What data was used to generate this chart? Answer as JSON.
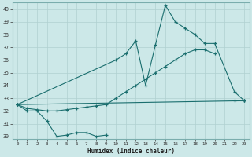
{
  "xlabel": "Humidex (Indice chaleur)",
  "bg_color": "#cce8e8",
  "grid_color": "#b0d0d0",
  "line_color": "#1a6e6e",
  "xlim": [
    -0.5,
    23.5
  ],
  "ylim": [
    29.8,
    40.5
  ],
  "xticks": [
    0,
    1,
    2,
    3,
    4,
    5,
    6,
    7,
    8,
    9,
    10,
    11,
    12,
    13,
    14,
    15,
    16,
    17,
    18,
    19,
    20,
    21,
    22,
    23
  ],
  "yticks": [
    30,
    31,
    32,
    33,
    34,
    35,
    36,
    37,
    38,
    39,
    40
  ],
  "series": [
    {
      "x": [
        0,
        1,
        2,
        3,
        4,
        5,
        6,
        7,
        8,
        9
      ],
      "y": [
        32.5,
        32.0,
        32.0,
        31.2,
        30.0,
        30.1,
        30.3,
        30.3,
        30.0,
        30.1
      ]
    },
    {
      "x": [
        0,
        1,
        2,
        3,
        4,
        5,
        6,
        7,
        8,
        9,
        10,
        11,
        12,
        13,
        14,
        15,
        16,
        17,
        18,
        19,
        20,
        21,
        22,
        23
      ],
      "y": [
        32.5,
        32.2,
        32.1,
        32.0,
        32.0,
        32.1,
        32.2,
        32.3,
        32.4,
        32.5,
        33.0,
        33.5,
        34.0,
        34.5,
        35.0,
        35.5,
        36.0,
        36.5,
        36.8,
        36.8,
        36.5,
        null,
        32.8,
        32.8
      ]
    },
    {
      "x": [
        0,
        10,
        11,
        12,
        13,
        14,
        15,
        16,
        17,
        18,
        19,
        20,
        22,
        23
      ],
      "y": [
        32.5,
        36.0,
        36.5,
        37.5,
        34.0,
        37.2,
        40.3,
        39.0,
        38.5,
        38.0,
        37.3,
        37.3,
        33.5,
        32.8
      ]
    },
    {
      "x": [
        0,
        23
      ],
      "y": [
        32.5,
        32.8
      ]
    }
  ]
}
